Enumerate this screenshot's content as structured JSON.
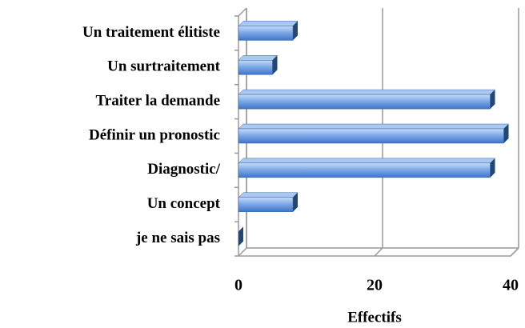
{
  "chart_data": {
    "type": "bar",
    "orientation": "horizontal",
    "three_d": true,
    "categories": [
      "Un traitement élitiste",
      "Un surtraitement",
      "Traiter la demande",
      "Définir un pronostic",
      "Diagnostic/",
      "Un concept",
      "je ne sais pas"
    ],
    "values": [
      8,
      5,
      37,
      39,
      37,
      8,
      0
    ],
    "color": "#5b8fd9",
    "xlim": [
      0,
      40
    ],
    "xticks": [
      0,
      20,
      40
    ],
    "grid": true,
    "x_label": "Effectifs"
  }
}
